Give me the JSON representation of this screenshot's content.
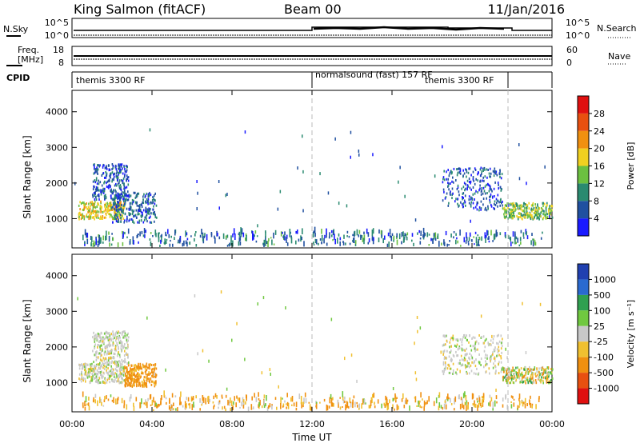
{
  "header": {
    "radar": "King Salmon (fitACF)",
    "beam": "Beam 00",
    "date": "11/Jan/2016"
  },
  "strips": {
    "nsky_label": "N.Sky",
    "nsearch_label": "N.Search",
    "noise_left_ticks": [
      "10^5",
      "10^0"
    ],
    "noise_right_ticks": [
      "10^5",
      "10^0"
    ],
    "freq_label": "Freq.",
    "freq_unit": "[MHz]",
    "freq_ticks": [
      "18",
      "8"
    ],
    "nave_label": "Nave",
    "nave_ticks": [
      "60",
      "0"
    ],
    "cpid_label": "CPID",
    "cpid_segments": [
      {
        "start_h": 0,
        "end_h": 12,
        "text": "themis 3300 RF"
      },
      {
        "start_h": 12,
        "end_h": 21.8,
        "text": "normalsound (fast) 157 RF"
      },
      {
        "start_h": 21.8,
        "end_h": 24,
        "text": "themis 3300 RF"
      }
    ]
  },
  "axes": {
    "y_label": "Slant Range [km]",
    "y_ticks": [
      "1000",
      "2000",
      "3000",
      "4000"
    ],
    "x_ticks": [
      "00:00",
      "04:00",
      "08:00",
      "12:00",
      "16:00",
      "20:00",
      "00:00"
    ],
    "x_label": "Time UT"
  },
  "power_scale": {
    "label": "Power [dB]",
    "ticks": [
      "4",
      "8",
      "12",
      "16",
      "20",
      "24",
      "28"
    ],
    "colors": [
      "#1a1aff",
      "#2050a0",
      "#2a8a70",
      "#6cc040",
      "#f0d020",
      "#f09010",
      "#e85010",
      "#e01010"
    ]
  },
  "velocity_scale": {
    "label": "Velocity [m s⁻¹]",
    "ticks": [
      "1000",
      "500",
      "100",
      "25",
      "-25",
      "-100",
      "-500",
      "-1000"
    ],
    "colors": [
      "#2040b0",
      "#2a6ad0",
      "#30a050",
      "#70c840",
      "#c8c8c8",
      "#f0c030",
      "#f09010",
      "#e85010",
      "#e01010"
    ]
  },
  "chart_data": [
    {
      "type": "heatmap",
      "title": "Power",
      "xlabel": "Time UT",
      "ylabel": "Slant Range [km]",
      "xlim": [
        0,
        24
      ],
      "ylim": [
        180,
        4600
      ],
      "colorbar_label": "Power [dB]",
      "colorbar_range": [
        0,
        32
      ],
      "clusters": [
        {
          "t0": 0.3,
          "t1": 2.6,
          "r0": 950,
          "r1": 1450,
          "mean_db": 18
        },
        {
          "t0": 2.0,
          "t1": 4.2,
          "r0": 850,
          "r1": 1700,
          "mean_db": 7
        },
        {
          "t0": 1.0,
          "t1": 2.8,
          "r0": 1500,
          "r1": 2500,
          "mean_db": 6
        },
        {
          "t0": 18.5,
          "t1": 21.5,
          "r0": 1200,
          "r1": 2400,
          "mean_db": 6
        },
        {
          "t0": 21.5,
          "t1": 24.0,
          "r0": 950,
          "r1": 1400,
          "mean_db": 14
        },
        {
          "t0": 0.5,
          "t1": 23.5,
          "r0": 200,
          "r1": 600,
          "mean_db": 8
        }
      ]
    },
    {
      "type": "heatmap",
      "title": "Velocity",
      "xlabel": "Time UT",
      "ylabel": "Slant Range [km]",
      "xlim": [
        0,
        24
      ],
      "ylim": [
        180,
        4600
      ],
      "colorbar_label": "Velocity [m s⁻¹]",
      "colorbar_range": [
        -1000,
        1000
      ],
      "clusters": [
        {
          "t0": 0.3,
          "t1": 2.6,
          "r0": 950,
          "r1": 1500,
          "mean_v": 0
        },
        {
          "t0": 2.6,
          "t1": 4.2,
          "r0": 850,
          "r1": 1500,
          "mean_v": -200
        },
        {
          "t0": 1.0,
          "t1": 2.8,
          "r0": 1500,
          "r1": 2400,
          "mean_v": 0
        },
        {
          "t0": 18.5,
          "t1": 21.5,
          "r0": 1200,
          "r1": 2300,
          "mean_v": 0
        },
        {
          "t0": 21.5,
          "t1": 24.0,
          "r0": 950,
          "r1": 1400,
          "mean_v": -20
        },
        {
          "t0": 0.5,
          "t1": 23.5,
          "r0": 200,
          "r1": 600,
          "mean_v": -100
        }
      ]
    }
  ]
}
